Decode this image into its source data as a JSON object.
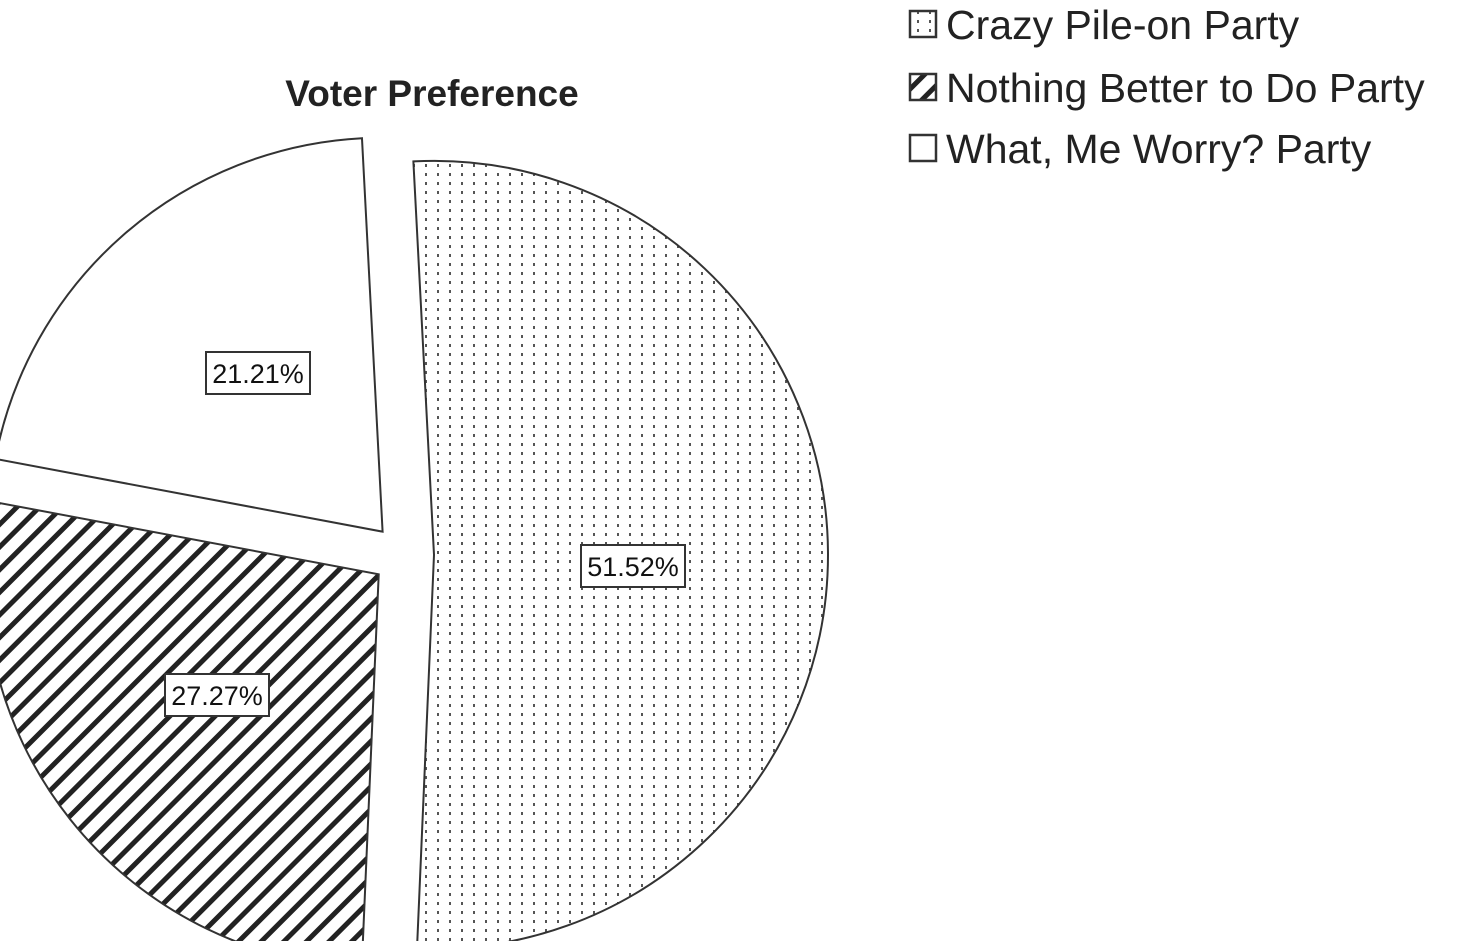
{
  "chart_data": {
    "type": "pie",
    "title": "Voter Preference",
    "categories": [
      "Crazy Pile-on Party",
      "Nothing Better to Do Party",
      "What, Me Worry? Party"
    ],
    "values": [
      51.52,
      27.27,
      21.21
    ],
    "labels": [
      "51.52%",
      "27.27%",
      "21.21%"
    ],
    "legend_position": "top-right",
    "fill_patterns": [
      "dotted",
      "diagonal-hatch",
      "blank"
    ],
    "colors": {
      "stroke": "#333333",
      "background": "#ffffff"
    }
  }
}
